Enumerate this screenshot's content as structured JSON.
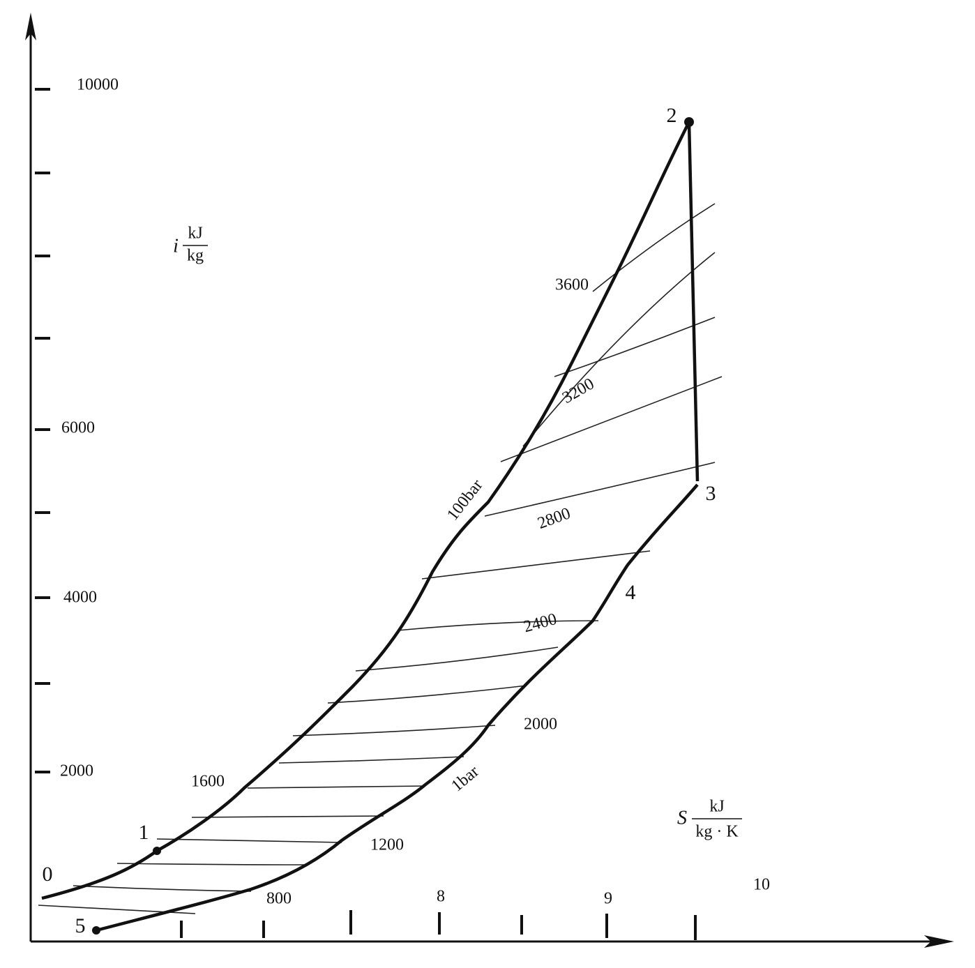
{
  "y_axis": {
    "symbol": "i",
    "numerator": "kJ",
    "denominator": "kg",
    "tick_labels": [
      "10000",
      "6000",
      "4000",
      "2000"
    ]
  },
  "x_axis": {
    "symbol": "S",
    "numerator": "kJ",
    "denominator": "kg · K",
    "tick_labels": [
      "8",
      "9",
      "10"
    ]
  },
  "points": [
    "0",
    "1",
    "2",
    "3",
    "4",
    "5"
  ],
  "isotherms": [
    "800",
    "1200",
    "1600",
    "2000",
    "2400",
    "2800",
    "3200",
    "3600"
  ],
  "isobars": [
    "100bar",
    "1bar"
  ]
}
